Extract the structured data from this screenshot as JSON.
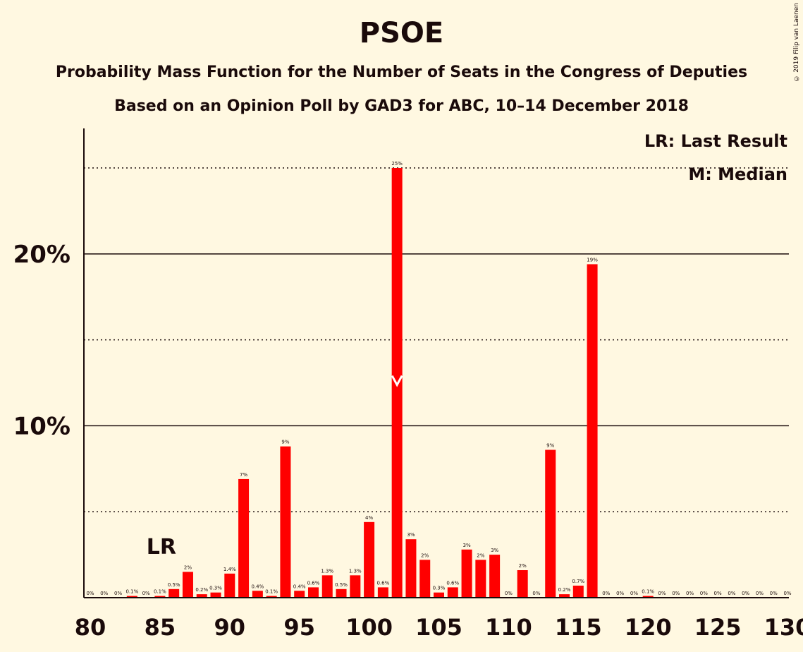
{
  "title": "PSOE",
  "subtitle1": "Probability Mass Function for the Number of Seats in the Congress of Deputies",
  "subtitle2": "Based on an Opinion Poll by GAD3 for ABC, 10–14 December 2018",
  "copyright": "© 2019 Filip van Laenen",
  "legend": {
    "last_result": "LR: Last Result",
    "median": "M: Median"
  },
  "colors": {
    "bar": "#ff0000",
    "background": "#fff8e1",
    "text": "#1a0a0a",
    "median_marker": "#ffffff"
  },
  "chart_data": {
    "type": "bar",
    "x": [
      80,
      81,
      82,
      83,
      84,
      85,
      86,
      87,
      88,
      89,
      90,
      91,
      92,
      93,
      94,
      95,
      96,
      97,
      98,
      99,
      100,
      101,
      102,
      103,
      104,
      105,
      106,
      107,
      108,
      109,
      110,
      111,
      112,
      113,
      114,
      115,
      116,
      117,
      118,
      119,
      120,
      121,
      122,
      123,
      124,
      125,
      126,
      127,
      128,
      129,
      130
    ],
    "values": [
      0,
      0,
      0,
      0.1,
      0,
      0.1,
      0.5,
      1.5,
      0.2,
      0.3,
      1.4,
      6.9,
      0.4,
      0.1,
      8.8,
      0.4,
      0.6,
      1.3,
      0.5,
      1.3,
      4.4,
      0.6,
      25.0,
      3.4,
      2.2,
      0.3,
      0.6,
      2.8,
      2.2,
      2.5,
      0,
      1.6,
      0,
      8.6,
      0.2,
      0.7,
      19.4,
      0,
      0,
      0,
      0.1,
      0,
      0,
      0,
      0,
      0,
      0,
      0,
      0,
      0,
      0
    ],
    "labels": [
      "0%",
      "0%",
      "0%",
      "0.1%",
      "0%",
      "0.1%",
      "0.5%",
      "2%",
      "0.2%",
      "0.3%",
      "1.4%",
      "7%",
      "0.4%",
      "0.1%",
      "9%",
      "0.4%",
      "0.6%",
      "1.3%",
      "0.5%",
      "1.3%",
      "4%",
      "0.6%",
      "25%",
      "3%",
      "2%",
      "0.3%",
      "0.6%",
      "3%",
      "2%",
      "3%",
      "0%",
      "2%",
      "0%",
      "9%",
      "0.2%",
      "0.7%",
      "19%",
      "0%",
      "0%",
      "0%",
      "0.1%",
      "0%",
      "0%",
      "0%",
      "0%",
      "0%",
      "0%",
      "0%",
      "0%",
      "0%",
      "0%"
    ],
    "xticks": [
      "80",
      "85",
      "90",
      "95",
      "100",
      "105",
      "110",
      "115",
      "120",
      "125",
      "130"
    ],
    "xtick_values": [
      80,
      85,
      90,
      95,
      100,
      105,
      110,
      115,
      120,
      125,
      130
    ],
    "yticks": [
      "10%",
      "20%"
    ],
    "ytick_values": [
      10,
      20
    ],
    "ydotted_values": [
      5,
      15,
      25
    ],
    "ylim": [
      0,
      27.3
    ],
    "xlim": [
      80,
      130
    ],
    "last_result": 85,
    "last_result_label": "LR",
    "median": 102,
    "grid": true
  }
}
